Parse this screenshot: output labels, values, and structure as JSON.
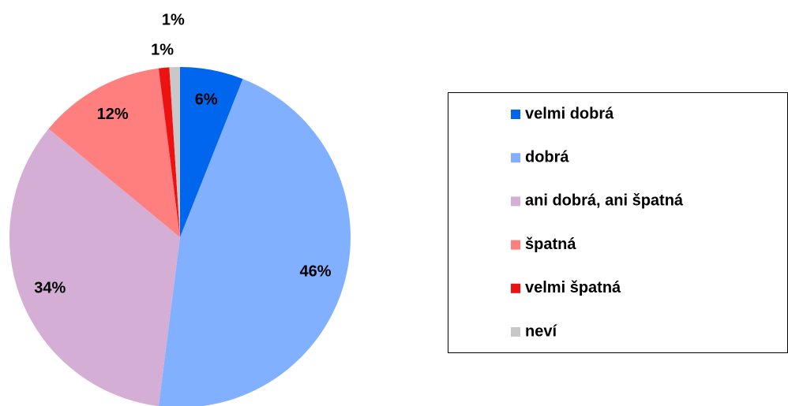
{
  "chart_data": {
    "type": "pie",
    "categories": [
      "velmi dobrá",
      "dobrá",
      "ani dobrá, ani špatná",
      "špatná",
      "velmi špatná",
      "neví"
    ],
    "values": [
      6,
      46,
      34,
      12,
      1,
      1
    ],
    "value_labels": [
      "6%",
      "46%",
      "34%",
      "12%",
      "1%",
      "1%"
    ],
    "colors": [
      "#0066ee",
      "#80b0ff",
      "#d4aed4",
      "#ff7f7f",
      "#ee1111",
      "#c8c8c8"
    ],
    "legend": "right"
  }
}
